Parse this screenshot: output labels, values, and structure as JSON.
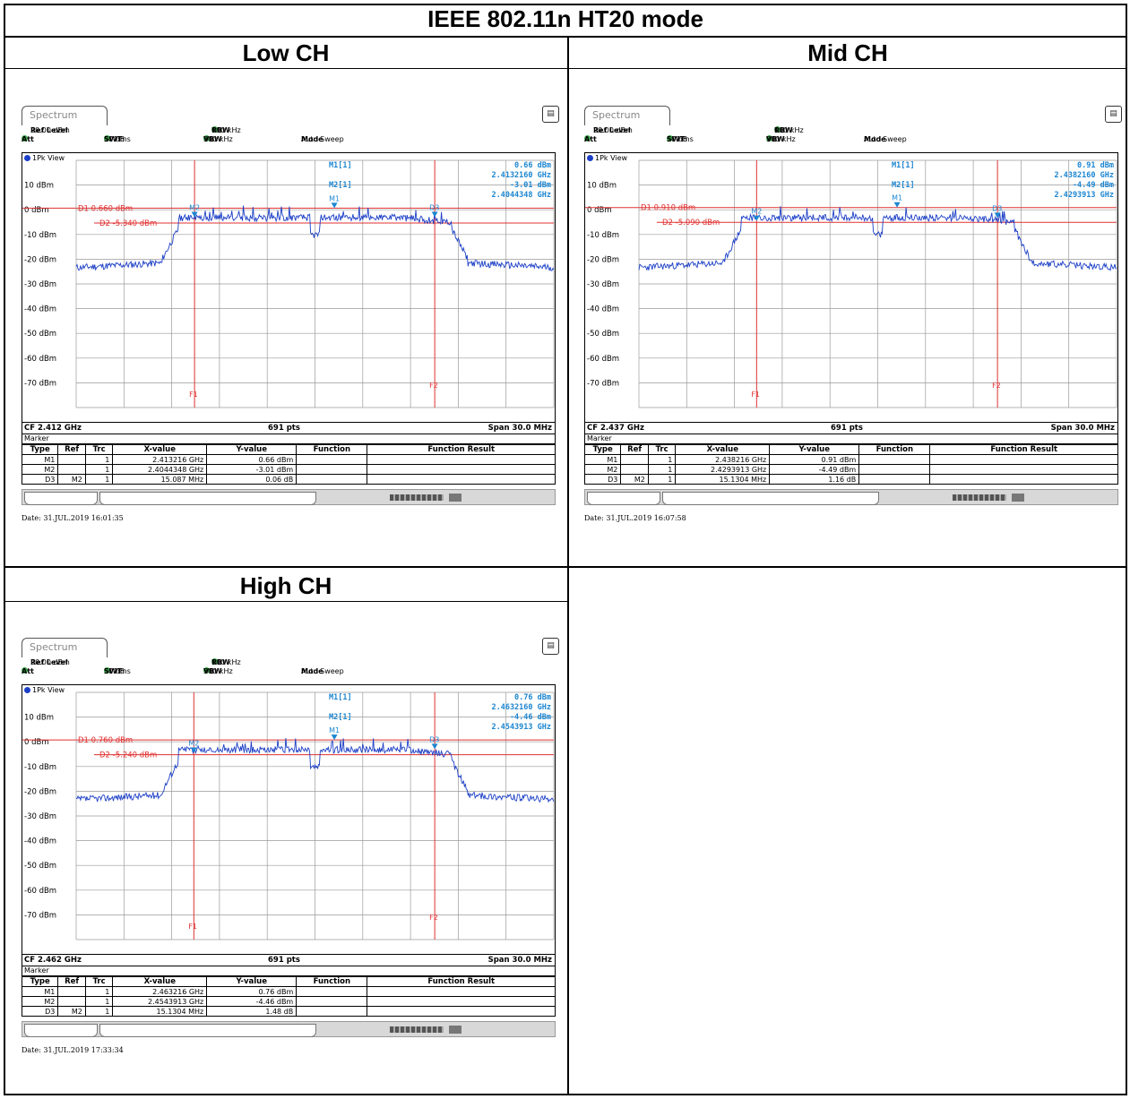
{
  "page": {
    "title": "IEEE 802.11n HT20 mode",
    "cells": [
      "Low CH",
      "Mid CH",
      "High CH"
    ]
  },
  "panels": [
    {
      "tab": "Spectrum",
      "ref_level_label": "Ref Level",
      "ref_level": "20.00 dBm",
      "att_label": "Att",
      "att": "30 dB",
      "swt_label": "SWT",
      "swt": "500 ms",
      "rbw_label": "RBW",
      "rbw": "100 kHz",
      "vbw_label": "VBW",
      "vbw": "300 kHz",
      "mode_label": "Mode",
      "mode": "Auto Sweep",
      "view": "1Pk View",
      "m1_label": "M1[1]",
      "m1_level": "0.66 dBm",
      "m1_freq": "2.4132160 GHz",
      "m2_label": "M2[1]",
      "m2_level": "-3.01 dBm",
      "m2_freq": "2.4044348 GHz",
      "d1_line": "D1  0.660 dBm",
      "d2_line": "D2  -5.340 dBm",
      "cf": "CF 2.412 GHz",
      "pts": "691 pts",
      "span": "Span 30.0 MHz",
      "marker_title": "Marker",
      "table_headers": [
        "Type",
        "Ref",
        "Trc",
        "X-value",
        "Y-value",
        "Function",
        "Function Result"
      ],
      "rows": [
        [
          "M1",
          "",
          "1",
          "2.413216 GHz",
          "0.66 dBm",
          "",
          ""
        ],
        [
          "M2",
          "",
          "1",
          "2.4044348 GHz",
          "-3.01 dBm",
          "",
          ""
        ],
        [
          "D3",
          "M2",
          "1",
          "15.087 MHz",
          "0.06 dB",
          "",
          ""
        ]
      ],
      "date": "Date: 31.JUL.2019  16:01:35",
      "d1_dbm": 0.66,
      "d2_dbm": -5.34,
      "m1_mhz": 1.216,
      "m2_mhz": -7.5652,
      "d3_mhz": 7.5218,
      "seed": 11
    },
    {
      "tab": "Spectrum",
      "ref_level_label": "Ref Level",
      "ref_level": "20.00 dBm",
      "att_label": "Att",
      "att": "30 dB",
      "swt_label": "SWT",
      "swt": "500 ms",
      "rbw_label": "RBW",
      "rbw": "100 kHz",
      "vbw_label": "VBW",
      "vbw": "300 kHz",
      "mode_label": "Mode",
      "mode": "Auto Sweep",
      "view": "1Pk View",
      "m1_label": "M1[1]",
      "m1_level": "0.91 dBm",
      "m1_freq": "2.4382160 GHz",
      "m2_label": "M2[1]",
      "m2_level": "-4.49 dBm",
      "m2_freq": "2.4293913 GHz",
      "d1_line": "D1  0.910 dBm",
      "d2_line": "D2  -5.090 dBm",
      "cf": "CF 2.437 GHz",
      "pts": "691 pts",
      "span": "Span 30.0 MHz",
      "marker_title": "Marker",
      "table_headers": [
        "Type",
        "Ref",
        "Trc",
        "X-value",
        "Y-value",
        "Function",
        "Function Result"
      ],
      "rows": [
        [
          "M1",
          "",
          "1",
          "2.438216 GHz",
          "0.91 dBm",
          "",
          ""
        ],
        [
          "M2",
          "",
          "1",
          "2.4293913 GHz",
          "-4.49 dBm",
          "",
          ""
        ],
        [
          "D3",
          "M2",
          "1",
          "15.1304 MHz",
          "1.16 dB",
          "",
          ""
        ]
      ],
      "date": "Date: 31.JUL.2019  16:07:58",
      "d1_dbm": 0.91,
      "d2_dbm": -5.09,
      "m1_mhz": 1.216,
      "m2_mhz": -7.6087,
      "d3_mhz": 7.5217,
      "seed": 23
    },
    {
      "tab": "Spectrum",
      "ref_level_label": "Ref Level",
      "ref_level": "20.00 dBm",
      "att_label": "Att",
      "att": "30 dB",
      "swt_label": "SWT",
      "swt": "500 ms",
      "rbw_label": "RBW",
      "rbw": "100 kHz",
      "vbw_label": "VBW",
      "vbw": "300 kHz",
      "mode_label": "Mode",
      "mode": "Auto Sweep",
      "view": "1Pk View",
      "m1_label": "M1[1]",
      "m1_level": "0.76 dBm",
      "m1_freq": "2.4632160 GHz",
      "m2_label": "M2[1]",
      "m2_level": "-4.46 dBm",
      "m2_freq": "2.4543913 GHz",
      "d1_line": "D1  0.760 dBm",
      "d2_line": "D2  -5.240 dBm",
      "cf": "CF 2.462 GHz",
      "pts": "691 pts",
      "span": "Span 30.0 MHz",
      "marker_title": "Marker",
      "table_headers": [
        "Type",
        "Ref",
        "Trc",
        "X-value",
        "Y-value",
        "Function",
        "Function Result"
      ],
      "rows": [
        [
          "M1",
          "",
          "1",
          "2.463216 GHz",
          "0.76 dBm",
          "",
          ""
        ],
        [
          "M2",
          "",
          "1",
          "2.4543913 GHz",
          "-4.46 dBm",
          "",
          ""
        ],
        [
          "D3",
          "M2",
          "1",
          "15.1304 MHz",
          "1.48 dB",
          "",
          ""
        ]
      ],
      "date": "Date: 31.JUL.2019  17:33:34",
      "d1_dbm": 0.76,
      "d2_dbm": -5.24,
      "m1_mhz": 1.216,
      "m2_mhz": -7.6087,
      "d3_mhz": 7.5217,
      "seed": 37
    }
  ],
  "chart_data": [
    {
      "type": "line",
      "title": "Low CH",
      "xlabel": "",
      "ylabel": "",
      "x_range_mhz": [
        -15,
        15
      ],
      "ylim": [
        -80,
        20
      ],
      "y_ticks": [
        "10 dBm",
        "0 dBm",
        "-10 dBm",
        "-20 dBm",
        "-30 dBm",
        "-40 dBm",
        "-50 dBm",
        "-60 dBm",
        "-70 dBm"
      ],
      "vertical_lines": [
        "F1",
        "F2"
      ],
      "markers": [
        {
          "name": "M1",
          "x": "2.413216 GHz",
          "y": 0.66
        },
        {
          "name": "M2",
          "x": "2.4044348 GHz",
          "y": -3.01
        },
        {
          "name": "D3",
          "x": "15.087 MHz",
          "y": 0.06
        }
      ]
    },
    {
      "type": "line",
      "title": "Mid CH",
      "xlabel": "",
      "ylabel": "",
      "x_range_mhz": [
        -15,
        15
      ],
      "ylim": [
        -80,
        20
      ],
      "y_ticks": [
        "10 dBm",
        "0 dBm",
        "-10 dBm",
        "-20 dBm",
        "-30 dBm",
        "-40 dBm",
        "-50 dBm",
        "-60 dBm",
        "-70 dBm"
      ],
      "vertical_lines": [
        "F1",
        "F2"
      ],
      "markers": [
        {
          "name": "M1",
          "x": "2.438216 GHz",
          "y": 0.91
        },
        {
          "name": "M2",
          "x": "2.4293913 GHz",
          "y": -4.49
        },
        {
          "name": "D3",
          "x": "15.1304 MHz",
          "y": 1.16
        }
      ]
    },
    {
      "type": "line",
      "title": "High CH",
      "xlabel": "",
      "ylabel": "",
      "x_range_mhz": [
        -15,
        15
      ],
      "ylim": [
        -80,
        20
      ],
      "y_ticks": [
        "10 dBm",
        "0 dBm",
        "-10 dBm",
        "-20 dBm",
        "-30 dBm",
        "-40 dBm",
        "-50 dBm",
        "-60 dBm",
        "-70 dBm"
      ],
      "vertical_lines": [
        "F1",
        "F2"
      ],
      "markers": [
        {
          "name": "M1",
          "x": "2.463216 GHz",
          "y": 0.76
        },
        {
          "name": "M2",
          "x": "2.4543913 GHz",
          "y": -4.46
        },
        {
          "name": "D3",
          "x": "15.1304 MHz",
          "y": 1.48
        }
      ]
    }
  ]
}
